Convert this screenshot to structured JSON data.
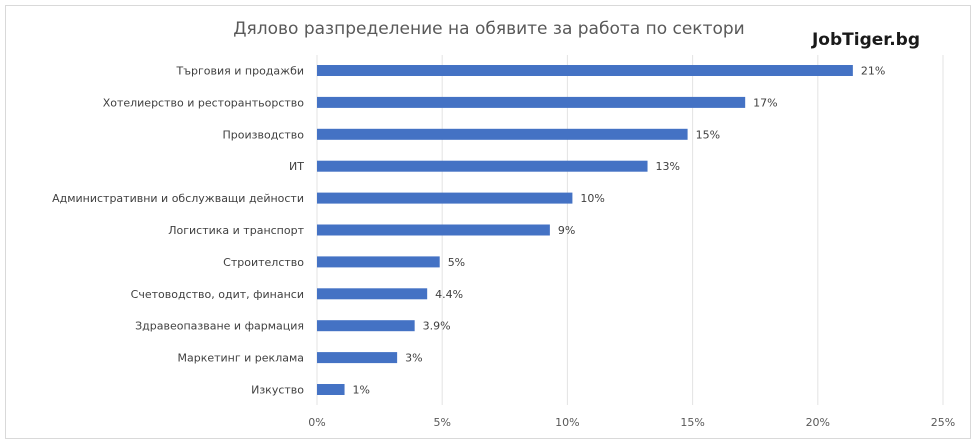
{
  "chart_data": {
    "type": "bar",
    "orientation": "horizontal",
    "title": "Дялово разпределение на обявите за работа по сектори",
    "brand": "JobTiger.bg",
    "xlabel": "",
    "ylabel": "",
    "xlim": [
      0,
      25
    ],
    "grid": true,
    "legend": "none",
    "bar_color": "#4472c4",
    "ticks": [
      {
        "value": 0,
        "label": "0%"
      },
      {
        "value": 5,
        "label": "5%"
      },
      {
        "value": 10,
        "label": "10%"
      },
      {
        "value": 15,
        "label": "15%"
      },
      {
        "value": 20,
        "label": "20%"
      },
      {
        "value": 25,
        "label": "25%"
      }
    ],
    "categories": [
      "Търговия и продажби",
      "Хотелиерство и ресторантьорство",
      "Производство",
      "ИТ",
      "Административни и обслужващи дейности",
      "Логистика и транспорт",
      "Строителство",
      "Счетоводство, одит, финанси",
      "Здравеопазване и фармация",
      "Маркетинг и реклама",
      "Изкуство"
    ],
    "values": [
      21.4,
      17.1,
      14.8,
      13.2,
      10.2,
      9.3,
      4.9,
      4.4,
      3.9,
      3.2,
      1.1
    ],
    "data_labels": [
      "21%",
      "17%",
      "15%",
      "13%",
      "10%",
      "9%",
      "5%",
      "4.4%",
      "3.9%",
      "3%",
      "1%"
    ]
  }
}
